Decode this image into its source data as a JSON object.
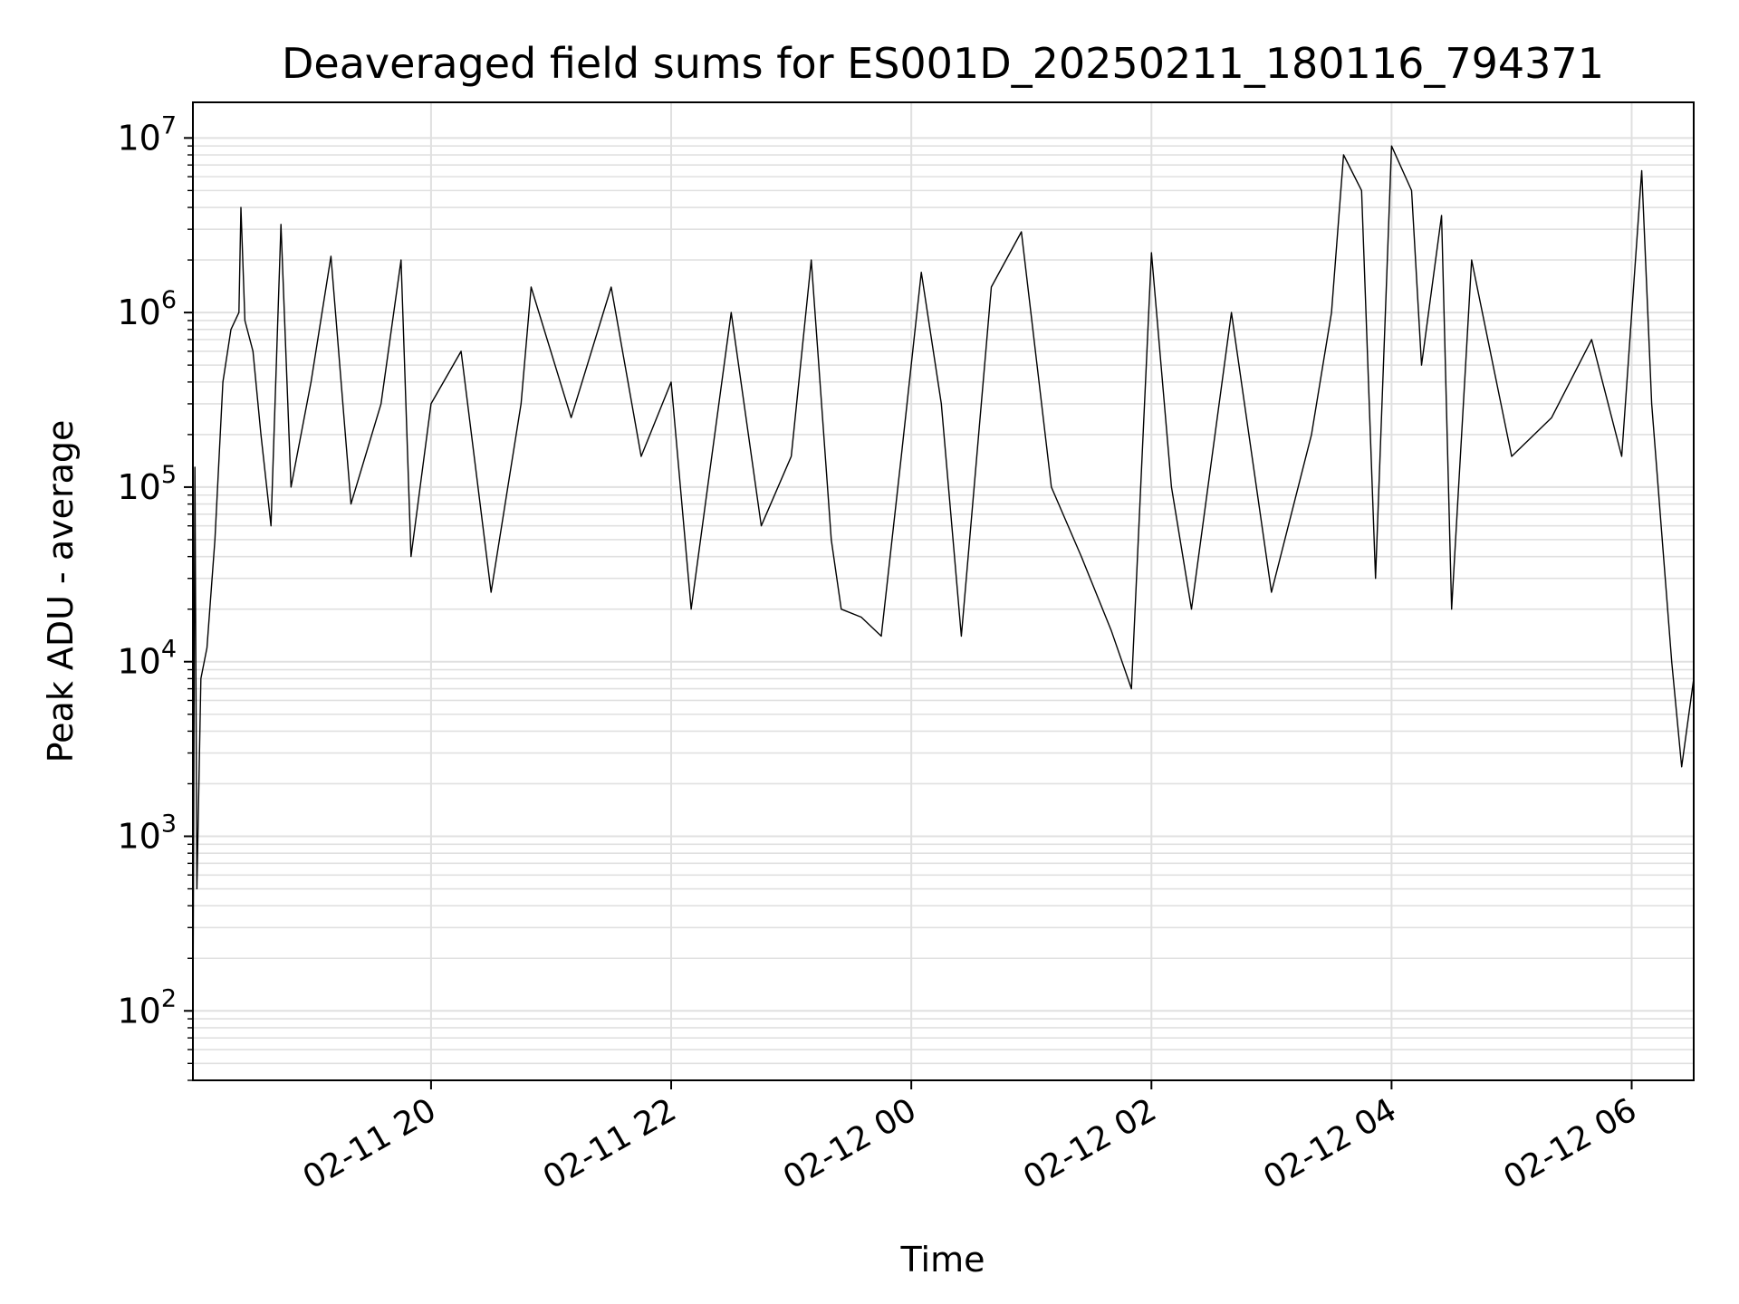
{
  "chart_data": {
    "type": "line",
    "title": "Deaveraged field sums for ES001D_20250211_180116_794371",
    "xlabel": "Time",
    "ylabel": "Peak ADU - average",
    "yscale": "log",
    "ylim": [
      40,
      16000000
    ],
    "xlim": [
      "2025-02-11 18:01",
      "2025-02-12 06:31"
    ],
    "grid": true,
    "legend": "none",
    "line_color": "#000000",
    "grid_color": "#e0e0e0",
    "x_ticks": [
      {
        "label": "02-11 20",
        "value": "2025-02-11 20:00"
      },
      {
        "label": "02-11 22",
        "value": "2025-02-11 22:00"
      },
      {
        "label": "02-12 00",
        "value": "2025-02-12 00:00"
      },
      {
        "label": "02-12 02",
        "value": "2025-02-12 02:00"
      },
      {
        "label": "02-12 04",
        "value": "2025-02-12 04:00"
      },
      {
        "label": "02-12 06",
        "value": "2025-02-12 06:00"
      }
    ],
    "y_ticks": [
      {
        "base": "10",
        "exp": "2",
        "value": 100
      },
      {
        "base": "10",
        "exp": "3",
        "value": 1000
      },
      {
        "base": "10",
        "exp": "4",
        "value": 10000
      },
      {
        "base": "10",
        "exp": "5",
        "value": 100000
      },
      {
        "base": "10",
        "exp": "6",
        "value": 1000000
      },
      {
        "base": "10",
        "exp": "7",
        "value": 10000000
      }
    ],
    "series": [
      {
        "points": [
          [
            "2025-02-11 18:01",
            70
          ],
          [
            "2025-02-11 18:02",
            130000
          ],
          [
            "2025-02-11 18:03",
            500
          ],
          [
            "2025-02-11 18:05",
            8000
          ],
          [
            "2025-02-11 18:08",
            12000
          ],
          [
            "2025-02-11 18:12",
            50000
          ],
          [
            "2025-02-11 18:16",
            400000
          ],
          [
            "2025-02-11 18:20",
            800000
          ],
          [
            "2025-02-11 18:24",
            1000000
          ],
          [
            "2025-02-11 18:25",
            4000000
          ],
          [
            "2025-02-11 18:27",
            900000
          ],
          [
            "2025-02-11 18:31",
            600000
          ],
          [
            "2025-02-11 18:35",
            200000
          ],
          [
            "2025-02-11 18:40",
            60000
          ],
          [
            "2025-02-11 18:45",
            3200000
          ],
          [
            "2025-02-11 18:50",
            100000
          ],
          [
            "2025-02-11 19:00",
            400000
          ],
          [
            "2025-02-11 19:10",
            2100000
          ],
          [
            "2025-02-11 19:20",
            80000
          ],
          [
            "2025-02-11 19:35",
            300000
          ],
          [
            "2025-02-11 19:45",
            2000000
          ],
          [
            "2025-02-11 19:50",
            40000
          ],
          [
            "2025-02-11 20:00",
            300000
          ],
          [
            "2025-02-11 20:15",
            600000
          ],
          [
            "2025-02-11 20:30",
            25000
          ],
          [
            "2025-02-11 20:45",
            300000
          ],
          [
            "2025-02-11 20:50",
            1400000
          ],
          [
            "2025-02-11 21:10",
            250000
          ],
          [
            "2025-02-11 21:30",
            1400000
          ],
          [
            "2025-02-11 21:45",
            150000
          ],
          [
            "2025-02-11 22:00",
            400000
          ],
          [
            "2025-02-11 22:10",
            20000
          ],
          [
            "2025-02-11 22:30",
            1000000
          ],
          [
            "2025-02-11 22:45",
            60000
          ],
          [
            "2025-02-11 23:00",
            150000
          ],
          [
            "2025-02-11 23:10",
            2000000
          ],
          [
            "2025-02-11 23:20",
            50000
          ],
          [
            "2025-02-11 23:25",
            20000
          ],
          [
            "2025-02-11 23:35",
            18000
          ],
          [
            "2025-02-11 23:45",
            14000
          ],
          [
            "2025-02-11 23:55",
            150000
          ],
          [
            "2025-02-12 00:05",
            1700000
          ],
          [
            "2025-02-12 00:15",
            300000
          ],
          [
            "2025-02-12 00:25",
            14000
          ],
          [
            "2025-02-12 00:40",
            1400000
          ],
          [
            "2025-02-12 00:55",
            2900000
          ],
          [
            "2025-02-12 01:10",
            100000
          ],
          [
            "2025-02-12 01:25",
            40000
          ],
          [
            "2025-02-12 01:40",
            15000
          ],
          [
            "2025-02-12 01:50",
            7000
          ],
          [
            "2025-02-12 02:00",
            2200000
          ],
          [
            "2025-02-12 02:10",
            100000
          ],
          [
            "2025-02-12 02:20",
            20000
          ],
          [
            "2025-02-12 02:40",
            1000000
          ],
          [
            "2025-02-12 03:00",
            25000
          ],
          [
            "2025-02-12 03:20",
            200000
          ],
          [
            "2025-02-12 03:30",
            1000000
          ],
          [
            "2025-02-12 03:36",
            8000000
          ],
          [
            "2025-02-12 03:45",
            5000000
          ],
          [
            "2025-02-12 03:52",
            30000
          ],
          [
            "2025-02-12 04:00",
            9000000
          ],
          [
            "2025-02-12 04:10",
            5000000
          ],
          [
            "2025-02-12 04:15",
            500000
          ],
          [
            "2025-02-12 04:25",
            3600000
          ],
          [
            "2025-02-12 04:30",
            20000
          ],
          [
            "2025-02-12 04:40",
            2000000
          ],
          [
            "2025-02-12 05:00",
            150000
          ],
          [
            "2025-02-12 05:20",
            250000
          ],
          [
            "2025-02-12 05:40",
            700000
          ],
          [
            "2025-02-12 05:55",
            150000
          ],
          [
            "2025-02-12 06:05",
            6500000
          ],
          [
            "2025-02-12 06:10",
            300000
          ],
          [
            "2025-02-12 06:20",
            10000
          ],
          [
            "2025-02-12 06:25",
            2500
          ],
          [
            "2025-02-12 06:31",
            8000
          ]
        ]
      }
    ]
  }
}
